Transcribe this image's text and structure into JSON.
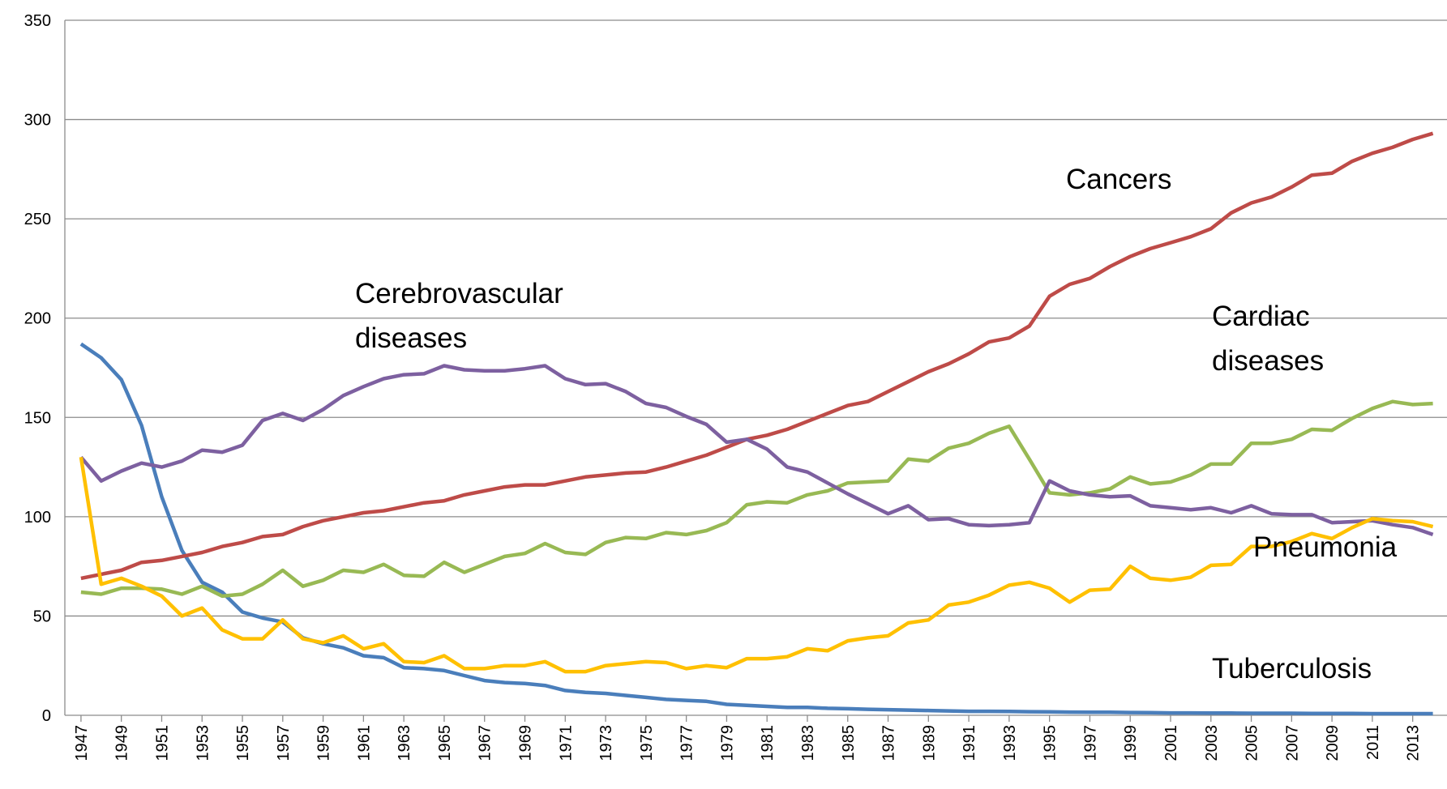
{
  "chart_data": {
    "type": "line",
    "x": [
      1947,
      1948,
      1949,
      1950,
      1951,
      1952,
      1953,
      1954,
      1955,
      1956,
      1957,
      1958,
      1959,
      1960,
      1961,
      1962,
      1963,
      1964,
      1965,
      1966,
      1967,
      1968,
      1969,
      1970,
      1971,
      1972,
      1973,
      1974,
      1975,
      1976,
      1977,
      1978,
      1979,
      1980,
      1981,
      1982,
      1983,
      1984,
      1985,
      1986,
      1987,
      1988,
      1989,
      1990,
      1991,
      1992,
      1993,
      1994,
      1995,
      1996,
      1997,
      1998,
      1999,
      2000,
      2001,
      2002,
      2003,
      2004,
      2005,
      2006,
      2007,
      2008,
      2009,
      2010,
      2011,
      2012,
      2013,
      2014
    ],
    "xlim": [
      1946.2,
      2014.7
    ],
    "xticks": [
      1947,
      1949,
      1951,
      1953,
      1955,
      1957,
      1959,
      1961,
      1963,
      1965,
      1967,
      1969,
      1971,
      1973,
      1975,
      1977,
      1979,
      1981,
      1983,
      1985,
      1987,
      1989,
      1991,
      1993,
      1995,
      1997,
      1999,
      2001,
      2003,
      2005,
      2007,
      2009,
      2011,
      2013
    ],
    "ylim": [
      0,
      350
    ],
    "yticks": [
      0,
      50,
      100,
      150,
      200,
      250,
      300,
      350
    ],
    "grid": true,
    "series": [
      {
        "name": "Tuberculosis",
        "color": "#4a7ebb",
        "values": [
          187,
          180,
          169,
          146,
          110,
          83,
          67,
          62,
          52,
          49,
          47,
          39,
          36,
          34,
          30,
          29,
          24,
          23.5,
          22.5,
          20,
          17.5,
          16.5,
          16,
          15,
          12.5,
          11.5,
          11,
          10,
          9,
          8,
          7.5,
          7,
          5.5,
          5,
          4.5,
          4,
          4,
          3.5,
          3.3,
          3,
          2.8,
          2.6,
          2.4,
          2.2,
          2,
          2,
          1.9,
          1.8,
          1.7,
          1.6,
          1.5,
          1.5,
          1.4,
          1.3,
          1.2,
          1.2,
          1.1,
          1.1,
          1,
          1,
          1,
          0.9,
          0.9,
          0.9,
          0.8,
          0.8,
          0.8,
          0.8
        ]
      },
      {
        "name": "Cancers",
        "color": "#be4b48",
        "values": [
          69,
          71,
          73,
          77,
          78,
          80,
          82,
          85,
          87,
          90,
          91,
          95,
          98,
          100,
          102,
          103,
          105,
          107,
          108,
          111,
          113,
          115,
          116,
          116,
          118,
          120,
          121,
          122,
          122.5,
          125,
          128,
          131,
          135,
          139,
          141,
          144,
          148,
          152,
          156,
          158,
          163,
          168,
          173,
          177,
          182,
          188,
          190,
          196,
          211,
          217,
          220,
          226,
          231,
          235,
          238,
          241,
          245,
          253,
          258,
          261,
          266,
          272,
          273,
          279,
          283,
          286,
          290,
          293
        ]
      },
      {
        "name": "Cardiac diseases",
        "color": "#98b954",
        "values": [
          62,
          61,
          64,
          64,
          63.5,
          61,
          65,
          60,
          61,
          66,
          73,
          65,
          68,
          73,
          72,
          76,
          70.5,
          70,
          77,
          72,
          76,
          80,
          81.5,
          86.5,
          82,
          81,
          87,
          89.5,
          89,
          92,
          91,
          93,
          97,
          106,
          107.5,
          107,
          111,
          113,
          117,
          117.5,
          118,
          129,
          128,
          134.5,
          137,
          142,
          145.5,
          129,
          112,
          111,
          112,
          114,
          120,
          116.5,
          117.5,
          121,
          126.5,
          126.5,
          137,
          137,
          139,
          144,
          143.5,
          149.5,
          154.5,
          158,
          156.5,
          157
        ]
      },
      {
        "name": "Cerebrovascular diseases",
        "color": "#7d60a0",
        "values": [
          130,
          118,
          123,
          127,
          125,
          128,
          133.5,
          132.5,
          136,
          148.5,
          152,
          148.5,
          154,
          161,
          165.5,
          169.5,
          171.5,
          172,
          176,
          174,
          173.5,
          173.5,
          174.5,
          176,
          169.5,
          166.5,
          167,
          163,
          157,
          155,
          150.5,
          146.5,
          137.5,
          139,
          134,
          125,
          122.5,
          117,
          111.5,
          106.5,
          101.5,
          105.5,
          98.5,
          99,
          96,
          95.5,
          96,
          97,
          118,
          113,
          111,
          110,
          110.5,
          105.5,
          104.5,
          103.5,
          104.5,
          102,
          105.5,
          101.5,
          101,
          101,
          97,
          97.5,
          98,
          96,
          94.5,
          91
        ]
      },
      {
        "name": "Pneumonia",
        "color": "#ffc000",
        "values": [
          130,
          66,
          69,
          65,
          60,
          50,
          54,
          43,
          38.5,
          38.5,
          48,
          38.5,
          36.5,
          40,
          33.5,
          36,
          27,
          26.5,
          30,
          23.5,
          23.5,
          25,
          25,
          27,
          22,
          22,
          25,
          26,
          27,
          26.5,
          23.5,
          25,
          24,
          28.5,
          28.5,
          29.5,
          33.5,
          32.5,
          37.5,
          39,
          40,
          46.5,
          48,
          55.5,
          57,
          60.5,
          65.5,
          67,
          64,
          57,
          63,
          63.5,
          75,
          69,
          68,
          69.5,
          75.5,
          76,
          85,
          85,
          87.5,
          91.5,
          89,
          94.5,
          99,
          98,
          97.5,
          95
        ]
      }
    ]
  }
}
